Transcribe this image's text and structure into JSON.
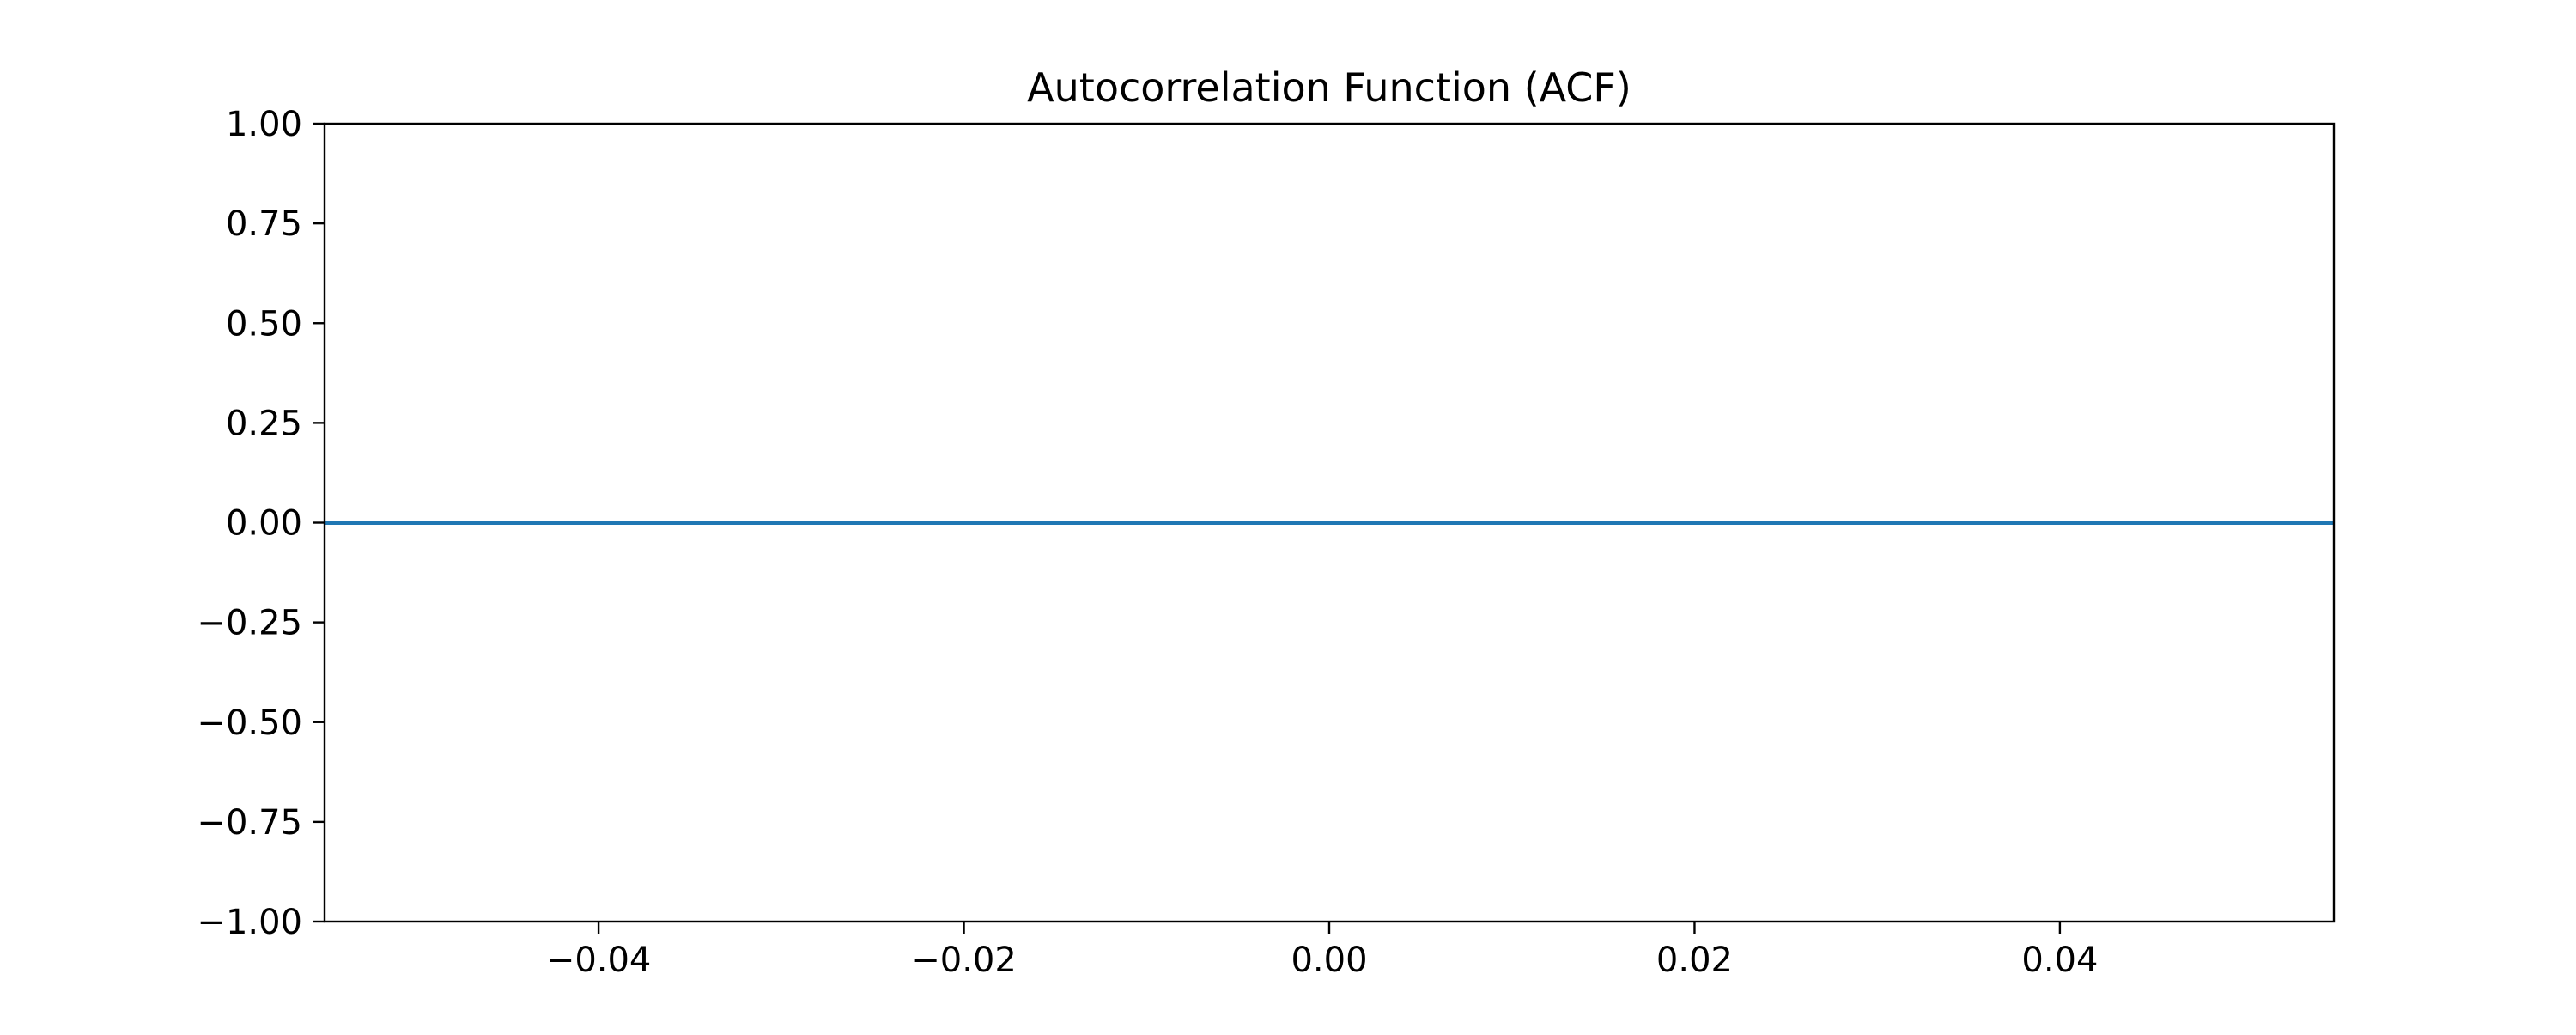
{
  "chart_data": {
    "type": "line",
    "title": "Autocorrelation Function (ACF)",
    "xlabel": "",
    "ylabel": "",
    "xlim": [
      -0.055,
      0.055
    ],
    "ylim": [
      -1.0,
      1.0
    ],
    "x_ticks": [
      {
        "value": -0.04,
        "label": "−0.04"
      },
      {
        "value": -0.02,
        "label": "−0.02"
      },
      {
        "value": 0.0,
        "label": "0.00"
      },
      {
        "value": 0.02,
        "label": "0.02"
      },
      {
        "value": 0.04,
        "label": "0.04"
      }
    ],
    "y_ticks": [
      {
        "value": 1.0,
        "label": "1.00"
      },
      {
        "value": 0.75,
        "label": "0.75"
      },
      {
        "value": 0.5,
        "label": "0.50"
      },
      {
        "value": 0.25,
        "label": "0.25"
      },
      {
        "value": 0.0,
        "label": "0.00"
      },
      {
        "value": -0.25,
        "label": "−0.25"
      },
      {
        "value": -0.5,
        "label": "−0.50"
      },
      {
        "value": -0.75,
        "label": "−0.75"
      },
      {
        "value": -1.0,
        "label": "−1.00"
      }
    ],
    "series": [
      {
        "x": [
          -0.055,
          0.055
        ],
        "y": [
          0.0,
          0.0
        ],
        "color": "#1f77b4"
      }
    ],
    "grid": false,
    "legend": "none"
  }
}
